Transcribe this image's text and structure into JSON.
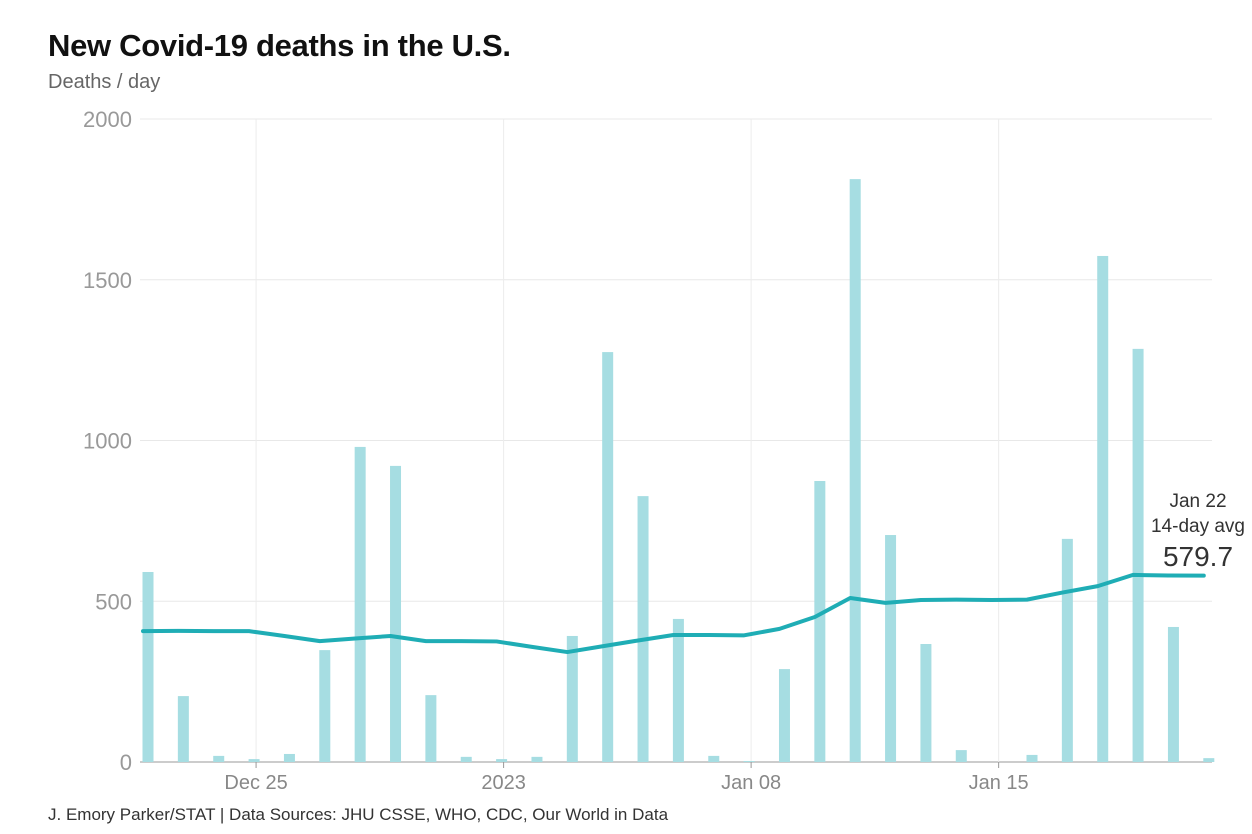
{
  "chart_data": {
    "type": "bar+line",
    "title": "New Covid-19 deaths in the U.S.",
    "subtitle": "Deaths / day",
    "source": "J. Emory Parker/STAT | Data Sources: JHU CSSE, WHO, CDC, Our World in Data",
    "ylim": [
      0,
      2000
    ],
    "yticks": [
      "0",
      "500",
      "1000",
      "1500",
      "2000"
    ],
    "ytick_values": [
      0,
      500,
      1000,
      1500,
      2000
    ],
    "xticks": [
      {
        "label": "Dec 25",
        "date": "2022-12-25"
      },
      {
        "label": "2023",
        "date": "2023-01-01"
      },
      {
        "label": "Jan 08",
        "date": "2023-01-08"
      },
      {
        "label": "Jan 15",
        "date": "2023-01-15"
      }
    ],
    "grid": true,
    "x": [
      "2022-12-22",
      "2022-12-23",
      "2022-12-24",
      "2022-12-25",
      "2022-12-26",
      "2022-12-27",
      "2022-12-28",
      "2022-12-29",
      "2022-12-30",
      "2022-12-31",
      "2023-01-01",
      "2023-01-02",
      "2023-01-03",
      "2023-01-04",
      "2023-01-05",
      "2023-01-06",
      "2023-01-07",
      "2023-01-08",
      "2023-01-09",
      "2023-01-10",
      "2023-01-11",
      "2023-01-12",
      "2023-01-13",
      "2023-01-14",
      "2023-01-15",
      "2023-01-16",
      "2023-01-17",
      "2023-01-18",
      "2023-01-19",
      "2023-01-20",
      "2023-01-21"
    ],
    "series": [
      {
        "kind": "bar",
        "color": "#a6dde2",
        "values": [
          591,
          205,
          19,
          9,
          25,
          348,
          980,
          921,
          208,
          16,
          9,
          16,
          392,
          1275,
          827,
          445,
          19,
          3,
          289,
          874,
          1813,
          706,
          367,
          37,
          0,
          22,
          694,
          1574,
          1285,
          420,
          12
        ]
      },
      {
        "kind": "line",
        "color": "#1fadb5",
        "values": [
          407,
          408,
          407,
          407,
          392,
          376,
          384,
          392,
          376,
          376,
          375,
          358,
          342,
          360,
          378,
          395,
          395,
          394,
          414,
          451,
          510,
          495,
          504,
          505,
          504,
          505,
          527,
          547,
          582,
          580,
          579.7
        ]
      }
    ],
    "annotation": {
      "date": "Jan 22",
      "label": "14-day avg",
      "value": "579.7"
    }
  }
}
